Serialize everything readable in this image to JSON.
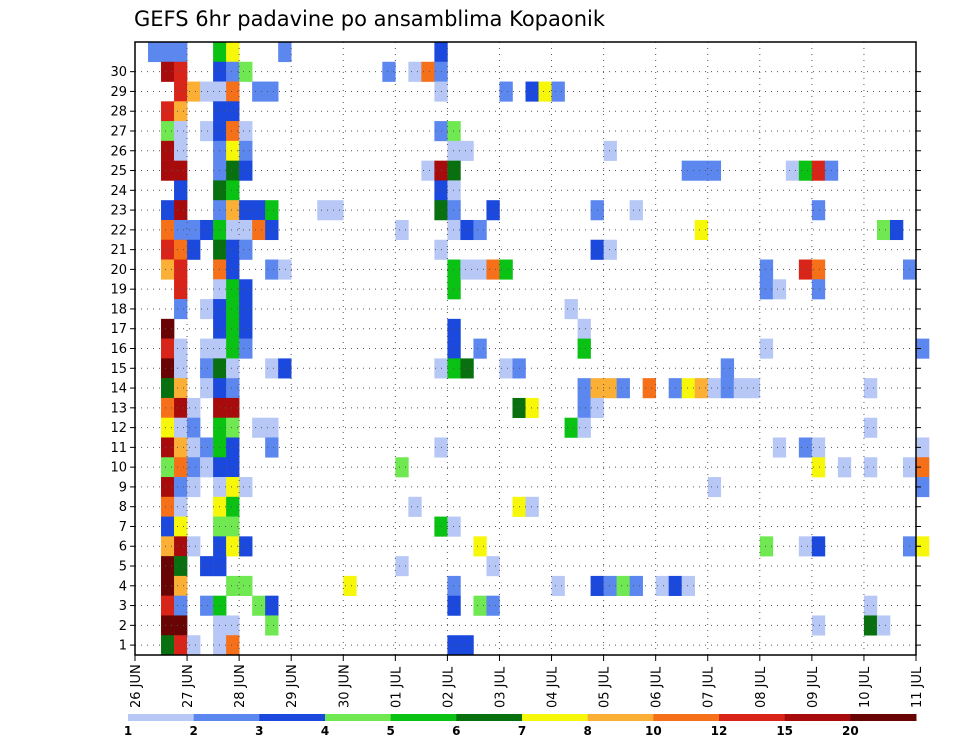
{
  "chart_data": {
    "type": "heatmap",
    "title": "GEFS 6hr padavine po ansamblima Kopaonik",
    "xlabel": "",
    "ylabel": "",
    "y_categories": [
      "1",
      "2",
      "3",
      "4",
      "5",
      "6",
      "7",
      "8",
      "9",
      "10",
      "11",
      "12",
      "13",
      "14",
      "15",
      "16",
      "17",
      "18",
      "19",
      "20",
      "21",
      "22",
      "23",
      "24",
      "25",
      "26",
      "27",
      "28",
      "29",
      "30"
    ],
    "x_ticks": [
      "26 JUN",
      "27 JUN",
      "28 JUN",
      "29 JUN",
      "30 JUN",
      "01 JUL",
      "02 JUL",
      "03 JUL",
      "04 JUL",
      "05 JUL",
      "06 JUL",
      "07 JUL",
      "08 JUL",
      "09 JUL",
      "10 JUL",
      "11 JUL"
    ],
    "x_steps_per_tick": 4,
    "x_range_steps": [
      0,
      60
    ],
    "grid": true,
    "legend": {
      "position": "bottom",
      "levels": [
        "1",
        "2",
        "3",
        "4",
        "5",
        "6",
        "7",
        "8",
        "10",
        "12",
        "15",
        "20"
      ],
      "colors": [
        "#b7c8f6",
        "#5b87ef",
        "#1b48dd",
        "#6fe851",
        "#0ac214",
        "#08700f",
        "#f7f70a",
        "#fbb035",
        "#f57018",
        "#d9241a",
        "#a80b0b",
        "#690404"
      ]
    },
    "cells": [
      [
        30,
        1,
        2
      ],
      [
        30,
        2,
        2
      ],
      [
        30,
        3,
        2
      ],
      [
        30,
        6,
        5
      ],
      [
        30,
        7,
        7
      ],
      [
        30,
        11,
        2
      ],
      [
        30,
        23,
        3
      ],
      [
        29,
        2,
        11
      ],
      [
        29,
        3,
        10
      ],
      [
        29,
        6,
        3
      ],
      [
        29,
        7,
        2
      ],
      [
        29,
        8,
        4
      ],
      [
        29,
        19,
        2
      ],
      [
        29,
        21,
        1
      ],
      [
        29,
        22,
        9
      ],
      [
        29,
        23,
        2
      ],
      [
        28,
        3,
        10
      ],
      [
        28,
        4,
        8
      ],
      [
        28,
        5,
        1
      ],
      [
        28,
        6,
        1
      ],
      [
        28,
        7,
        9
      ],
      [
        28,
        9,
        2
      ],
      [
        28,
        10,
        2
      ],
      [
        28,
        23,
        1
      ],
      [
        28,
        28,
        2
      ],
      [
        28,
        30,
        3
      ],
      [
        28,
        31,
        7
      ],
      [
        28,
        32,
        2
      ],
      [
        27,
        2,
        10
      ],
      [
        27,
        3,
        8
      ],
      [
        27,
        6,
        3
      ],
      [
        27,
        7,
        3
      ],
      [
        26,
        2,
        4
      ],
      [
        26,
        3,
        1
      ],
      [
        26,
        5,
        1
      ],
      [
        26,
        6,
        3
      ],
      [
        26,
        7,
        9
      ],
      [
        26,
        8,
        1
      ],
      [
        26,
        23,
        2
      ],
      [
        26,
        24,
        4
      ],
      [
        25,
        2,
        11
      ],
      [
        25,
        3,
        1
      ],
      [
        25,
        6,
        2
      ],
      [
        25,
        7,
        7
      ],
      [
        25,
        8,
        2
      ],
      [
        25,
        24,
        1
      ],
      [
        25,
        25,
        1
      ],
      [
        25,
        36,
        1
      ],
      [
        24,
        2,
        11
      ],
      [
        24,
        3,
        11
      ],
      [
        24,
        6,
        2
      ],
      [
        24,
        7,
        6
      ],
      [
        24,
        8,
        3
      ],
      [
        24,
        22,
        1
      ],
      [
        24,
        23,
        11
      ],
      [
        24,
        24,
        6
      ],
      [
        24,
        42,
        2
      ],
      [
        24,
        43,
        2
      ],
      [
        24,
        44,
        2
      ],
      [
        24,
        50,
        1
      ],
      [
        24,
        51,
        5
      ],
      [
        24,
        52,
        10
      ],
      [
        24,
        53,
        2
      ],
      [
        23,
        3,
        3
      ],
      [
        23,
        6,
        6
      ],
      [
        23,
        7,
        5
      ],
      [
        23,
        23,
        3
      ],
      [
        23,
        24,
        1
      ],
      [
        22,
        2,
        3
      ],
      [
        22,
        3,
        11
      ],
      [
        22,
        6,
        2
      ],
      [
        22,
        7,
        8
      ],
      [
        22,
        8,
        3
      ],
      [
        22,
        9,
        3
      ],
      [
        22,
        10,
        5
      ],
      [
        22,
        14,
        1
      ],
      [
        22,
        15,
        1
      ],
      [
        22,
        23,
        6
      ],
      [
        22,
        24,
        2
      ],
      [
        22,
        27,
        3
      ],
      [
        22,
        35,
        2
      ],
      [
        22,
        38,
        1
      ],
      [
        22,
        52,
        2
      ],
      [
        21,
        2,
        9
      ],
      [
        21,
        3,
        2
      ],
      [
        21,
        4,
        2
      ],
      [
        21,
        5,
        3
      ],
      [
        21,
        6,
        5
      ],
      [
        21,
        7,
        1
      ],
      [
        21,
        8,
        1
      ],
      [
        21,
        9,
        9
      ],
      [
        21,
        10,
        3
      ],
      [
        21,
        20,
        1
      ],
      [
        21,
        24,
        1
      ],
      [
        21,
        25,
        3
      ],
      [
        21,
        26,
        2
      ],
      [
        21,
        43,
        7
      ],
      [
        21,
        57,
        4
      ],
      [
        21,
        58,
        3
      ],
      [
        20,
        2,
        10
      ],
      [
        20,
        3,
        9
      ],
      [
        20,
        4,
        3
      ],
      [
        20,
        6,
        6
      ],
      [
        20,
        7,
        3
      ],
      [
        20,
        8,
        2
      ],
      [
        20,
        23,
        1
      ],
      [
        20,
        35,
        3
      ],
      [
        20,
        36,
        1
      ],
      [
        19,
        2,
        8
      ],
      [
        19,
        3,
        10
      ],
      [
        19,
        6,
        9
      ],
      [
        19,
        7,
        3
      ],
      [
        19,
        10,
        2
      ],
      [
        19,
        11,
        1
      ],
      [
        19,
        24,
        5
      ],
      [
        19,
        25,
        1
      ],
      [
        19,
        26,
        1
      ],
      [
        19,
        27,
        9
      ],
      [
        19,
        28,
        5
      ],
      [
        19,
        48,
        2
      ],
      [
        19,
        51,
        10
      ],
      [
        19,
        52,
        9
      ],
      [
        19,
        59,
        2
      ],
      [
        18,
        3,
        10
      ],
      [
        18,
        6,
        1
      ],
      [
        18,
        7,
        5
      ],
      [
        18,
        8,
        3
      ],
      [
        18,
        24,
        5
      ],
      [
        18,
        48,
        2
      ],
      [
        18,
        49,
        1
      ],
      [
        18,
        52,
        2
      ],
      [
        17,
        3,
        2
      ],
      [
        17,
        5,
        1
      ],
      [
        17,
        6,
        3
      ],
      [
        17,
        7,
        5
      ],
      [
        17,
        8,
        3
      ],
      [
        17,
        33,
        1
      ],
      [
        16,
        2,
        12
      ],
      [
        16,
        6,
        3
      ],
      [
        16,
        7,
        5
      ],
      [
        16,
        8,
        3
      ],
      [
        16,
        24,
        3
      ],
      [
        16,
        34,
        1
      ],
      [
        15,
        2,
        10
      ],
      [
        15,
        3,
        1
      ],
      [
        15,
        5,
        1
      ],
      [
        15,
        6,
        1
      ],
      [
        15,
        7,
        5
      ],
      [
        15,
        8,
        2
      ],
      [
        15,
        24,
        3
      ],
      [
        15,
        26,
        2
      ],
      [
        15,
        34,
        5
      ],
      [
        15,
        48,
        1
      ],
      [
        15,
        60,
        2
      ],
      [
        14,
        2,
        12
      ],
      [
        14,
        3,
        1
      ],
      [
        14,
        5,
        2
      ],
      [
        14,
        6,
        6
      ],
      [
        14,
        7,
        1
      ],
      [
        14,
        10,
        1
      ],
      [
        14,
        11,
        3
      ],
      [
        14,
        23,
        1
      ],
      [
        14,
        24,
        5
      ],
      [
        14,
        25,
        6
      ],
      [
        14,
        28,
        1
      ],
      [
        14,
        29,
        2
      ],
      [
        14,
        45,
        2
      ],
      [
        13,
        2,
        6
      ],
      [
        13,
        3,
        8
      ],
      [
        13,
        5,
        1
      ],
      [
        13,
        6,
        3
      ],
      [
        13,
        7,
        2
      ],
      [
        13,
        34,
        2
      ],
      [
        13,
        35,
        8
      ],
      [
        13,
        36,
        8
      ],
      [
        13,
        37,
        2
      ],
      [
        13,
        39,
        9
      ],
      [
        13,
        41,
        2
      ],
      [
        13,
        42,
        7
      ],
      [
        13,
        43,
        8
      ],
      [
        13,
        44,
        1
      ],
      [
        13,
        45,
        2
      ],
      [
        13,
        46,
        1
      ],
      [
        13,
        47,
        1
      ],
      [
        13,
        56,
        1
      ],
      [
        12,
        2,
        9
      ],
      [
        12,
        3,
        11
      ],
      [
        12,
        4,
        1
      ],
      [
        12,
        6,
        11
      ],
      [
        12,
        7,
        11
      ],
      [
        12,
        29,
        6
      ],
      [
        12,
        30,
        7
      ],
      [
        12,
        34,
        2
      ],
      [
        12,
        35,
        1
      ],
      [
        11,
        2,
        7
      ],
      [
        11,
        3,
        1
      ],
      [
        11,
        4,
        2
      ],
      [
        11,
        6,
        5
      ],
      [
        11,
        7,
        4
      ],
      [
        11,
        9,
        1
      ],
      [
        11,
        10,
        1
      ],
      [
        11,
        33,
        5
      ],
      [
        11,
        34,
        1
      ],
      [
        11,
        56,
        1
      ],
      [
        10,
        2,
        11
      ],
      [
        10,
        3,
        8
      ],
      [
        10,
        4,
        1
      ],
      [
        10,
        5,
        2
      ],
      [
        10,
        6,
        5
      ],
      [
        10,
        7,
        3
      ],
      [
        10,
        10,
        2
      ],
      [
        10,
        23,
        1
      ],
      [
        10,
        49,
        1
      ],
      [
        10,
        51,
        2
      ],
      [
        10,
        52,
        1
      ],
      [
        10,
        60,
        1
      ],
      [
        9,
        2,
        4
      ],
      [
        9,
        3,
        9
      ],
      [
        9,
        4,
        2
      ],
      [
        9,
        5,
        1
      ],
      [
        9,
        6,
        3
      ],
      [
        9,
        7,
        3
      ],
      [
        9,
        20,
        4
      ],
      [
        9,
        52,
        7
      ],
      [
        9,
        54,
        1
      ],
      [
        9,
        56,
        1
      ],
      [
        9,
        59,
        1
      ],
      [
        9,
        60,
        9
      ],
      [
        8,
        2,
        11
      ],
      [
        8,
        3,
        2
      ],
      [
        8,
        4,
        1
      ],
      [
        8,
        6,
        1
      ],
      [
        8,
        7,
        7
      ],
      [
        8,
        8,
        1
      ],
      [
        8,
        44,
        1
      ],
      [
        8,
        60,
        2
      ],
      [
        7,
        2,
        9
      ],
      [
        7,
        3,
        1
      ],
      [
        7,
        6,
        7
      ],
      [
        7,
        7,
        5
      ],
      [
        7,
        21,
        1
      ],
      [
        7,
        29,
        7
      ],
      [
        7,
        30,
        1
      ],
      [
        6,
        2,
        3
      ],
      [
        6,
        3,
        7
      ],
      [
        6,
        6,
        4
      ],
      [
        6,
        7,
        4
      ],
      [
        6,
        23,
        5
      ],
      [
        6,
        24,
        1
      ],
      [
        5,
        2,
        8
      ],
      [
        5,
        3,
        11
      ],
      [
        5,
        4,
        1
      ],
      [
        5,
        6,
        3
      ],
      [
        5,
        7,
        7
      ],
      [
        5,
        8,
        3
      ],
      [
        5,
        26,
        7
      ],
      [
        5,
        48,
        4
      ],
      [
        5,
        51,
        1
      ],
      [
        5,
        52,
        3
      ],
      [
        5,
        59,
        2
      ],
      [
        5,
        60,
        7
      ],
      [
        4,
        2,
        12
      ],
      [
        4,
        3,
        6
      ],
      [
        4,
        5,
        3
      ],
      [
        4,
        6,
        3
      ],
      [
        4,
        20,
        1
      ],
      [
        4,
        27,
        1
      ],
      [
        3,
        2,
        12
      ],
      [
        3,
        3,
        8
      ],
      [
        3,
        7,
        4
      ],
      [
        3,
        8,
        4
      ],
      [
        3,
        16,
        7
      ],
      [
        3,
        24,
        2
      ],
      [
        3,
        32,
        1
      ],
      [
        3,
        35,
        3
      ],
      [
        3,
        36,
        2
      ],
      [
        3,
        37,
        4
      ],
      [
        3,
        38,
        2
      ],
      [
        3,
        40,
        1
      ],
      [
        3,
        41,
        3
      ],
      [
        3,
        42,
        1
      ],
      [
        2,
        2,
        10
      ],
      [
        2,
        3,
        2
      ],
      [
        2,
        5,
        2
      ],
      [
        2,
        6,
        5
      ],
      [
        2,
        9,
        4
      ],
      [
        2,
        10,
        3
      ],
      [
        2,
        24,
        3
      ],
      [
        2,
        26,
        4
      ],
      [
        2,
        27,
        2
      ],
      [
        2,
        56,
        1
      ],
      [
        1,
        2,
        12
      ],
      [
        1,
        3,
        12
      ],
      [
        1,
        6,
        1
      ],
      [
        1,
        7,
        1
      ],
      [
        1,
        10,
        4
      ],
      [
        1,
        52,
        1
      ],
      [
        1,
        56,
        6
      ],
      [
        1,
        57,
        1
      ],
      [
        0,
        2,
        6
      ],
      [
        0,
        3,
        10
      ],
      [
        0,
        4,
        1
      ],
      [
        0,
        6,
        1
      ],
      [
        0,
        7,
        9
      ],
      [
        0,
        24,
        3
      ],
      [
        0,
        25,
        3
      ]
    ]
  }
}
